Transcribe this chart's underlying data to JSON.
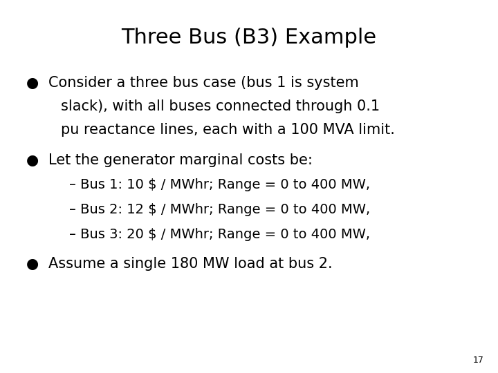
{
  "title": "Three Bus (B3) Example",
  "title_fontsize": 22,
  "body_font": "DejaVu Sans",
  "background_color": "#ffffff",
  "text_color": "#000000",
  "bullet_color": "#000000",
  "bullet1_line1": "Consider a three bus case (bus 1 is system",
  "bullet1_line2": "slack), with all buses connected through 0.1",
  "bullet1_line3": "pu reactance lines, each with a 100 MVA limit.",
  "bullet2": "Let the generator marginal costs be:",
  "sub1": "– Bus 1: 10 $ / MWhr; Range = 0 to 400 MW,",
  "sub2": "– Bus 2: 12 $ / MWhr; Range = 0 to 400 MW,",
  "sub3": "– Bus 3: 20 $ / MWhr; Range = 0 to 400 MW,",
  "bullet3": "Assume a single 180 MW load at bus 2.",
  "page_number": "17",
  "main_fontsize": 15,
  "sub_fontsize": 14,
  "bullet_fontsize": 13
}
